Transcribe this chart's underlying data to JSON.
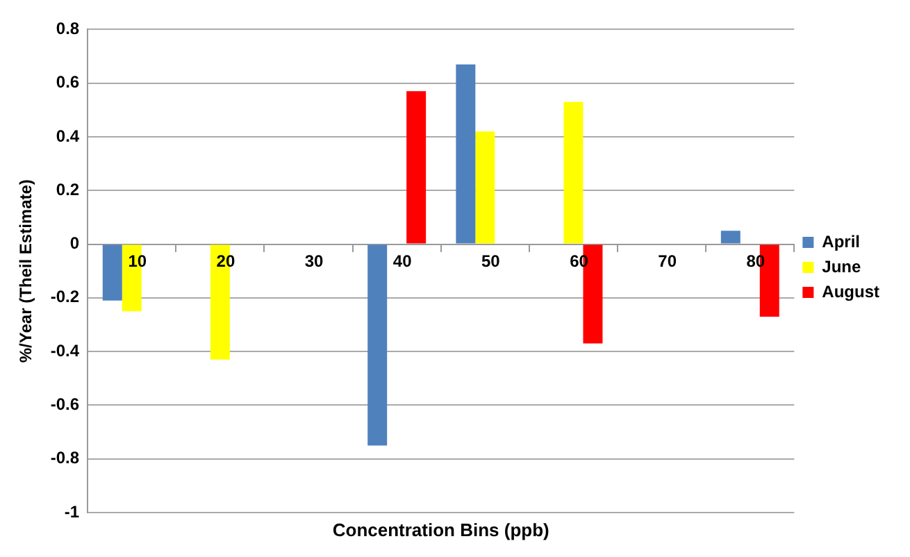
{
  "chart_data": {
    "type": "bar",
    "xlabel": "Concentration Bins (ppb)",
    "ylabel": "%/Year (Theil Estimate)",
    "categories": [
      "10",
      "20",
      "30",
      "40",
      "50",
      "60",
      "70",
      "80"
    ],
    "series": [
      {
        "name": "April",
        "color": "#4f81bd",
        "values": [
          -0.21,
          null,
          null,
          -0.75,
          0.67,
          null,
          null,
          0.05
        ]
      },
      {
        "name": "June",
        "color": "#ffff00",
        "values": [
          -0.25,
          -0.43,
          null,
          null,
          0.42,
          0.53,
          null,
          null
        ]
      },
      {
        "name": "August",
        "color": "#ff0000",
        "values": [
          null,
          null,
          null,
          0.57,
          null,
          -0.37,
          null,
          -0.27
        ]
      }
    ],
    "ylim": [
      -1,
      0.8
    ],
    "yticks": [
      -1,
      -0.8,
      -0.6,
      -0.4,
      -0.2,
      0,
      0.2,
      0.4,
      0.6,
      0.8
    ],
    "grid": "y",
    "legend": "right"
  }
}
